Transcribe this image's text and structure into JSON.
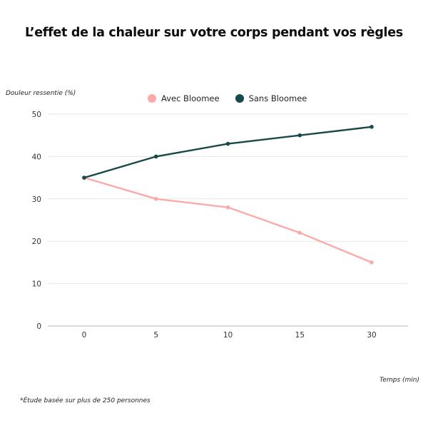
{
  "chart_data": {
    "type": "line",
    "title": "L’effet de la chaleur sur votre corps pendant vos règles",
    "xlabel": "Temps (min)",
    "ylabel": "Douleur ressentie (%)",
    "categories": [
      "0",
      "5",
      "10",
      "15",
      "30"
    ],
    "yticks": [
      0,
      10,
      20,
      30,
      40,
      50
    ],
    "ylim": [
      0,
      50
    ],
    "grid": true,
    "legend_position": "top-center",
    "series": [
      {
        "name": "Avec Bloomee",
        "color": "#fcaaa9",
        "values": [
          35,
          30,
          28,
          22,
          15
        ]
      },
      {
        "name": "Sans Bloomee",
        "color": "#184a4a",
        "values": [
          35,
          40,
          43,
          45,
          47
        ]
      }
    ],
    "footnote": "*Étude basée sur plus de 250 personnes"
  }
}
